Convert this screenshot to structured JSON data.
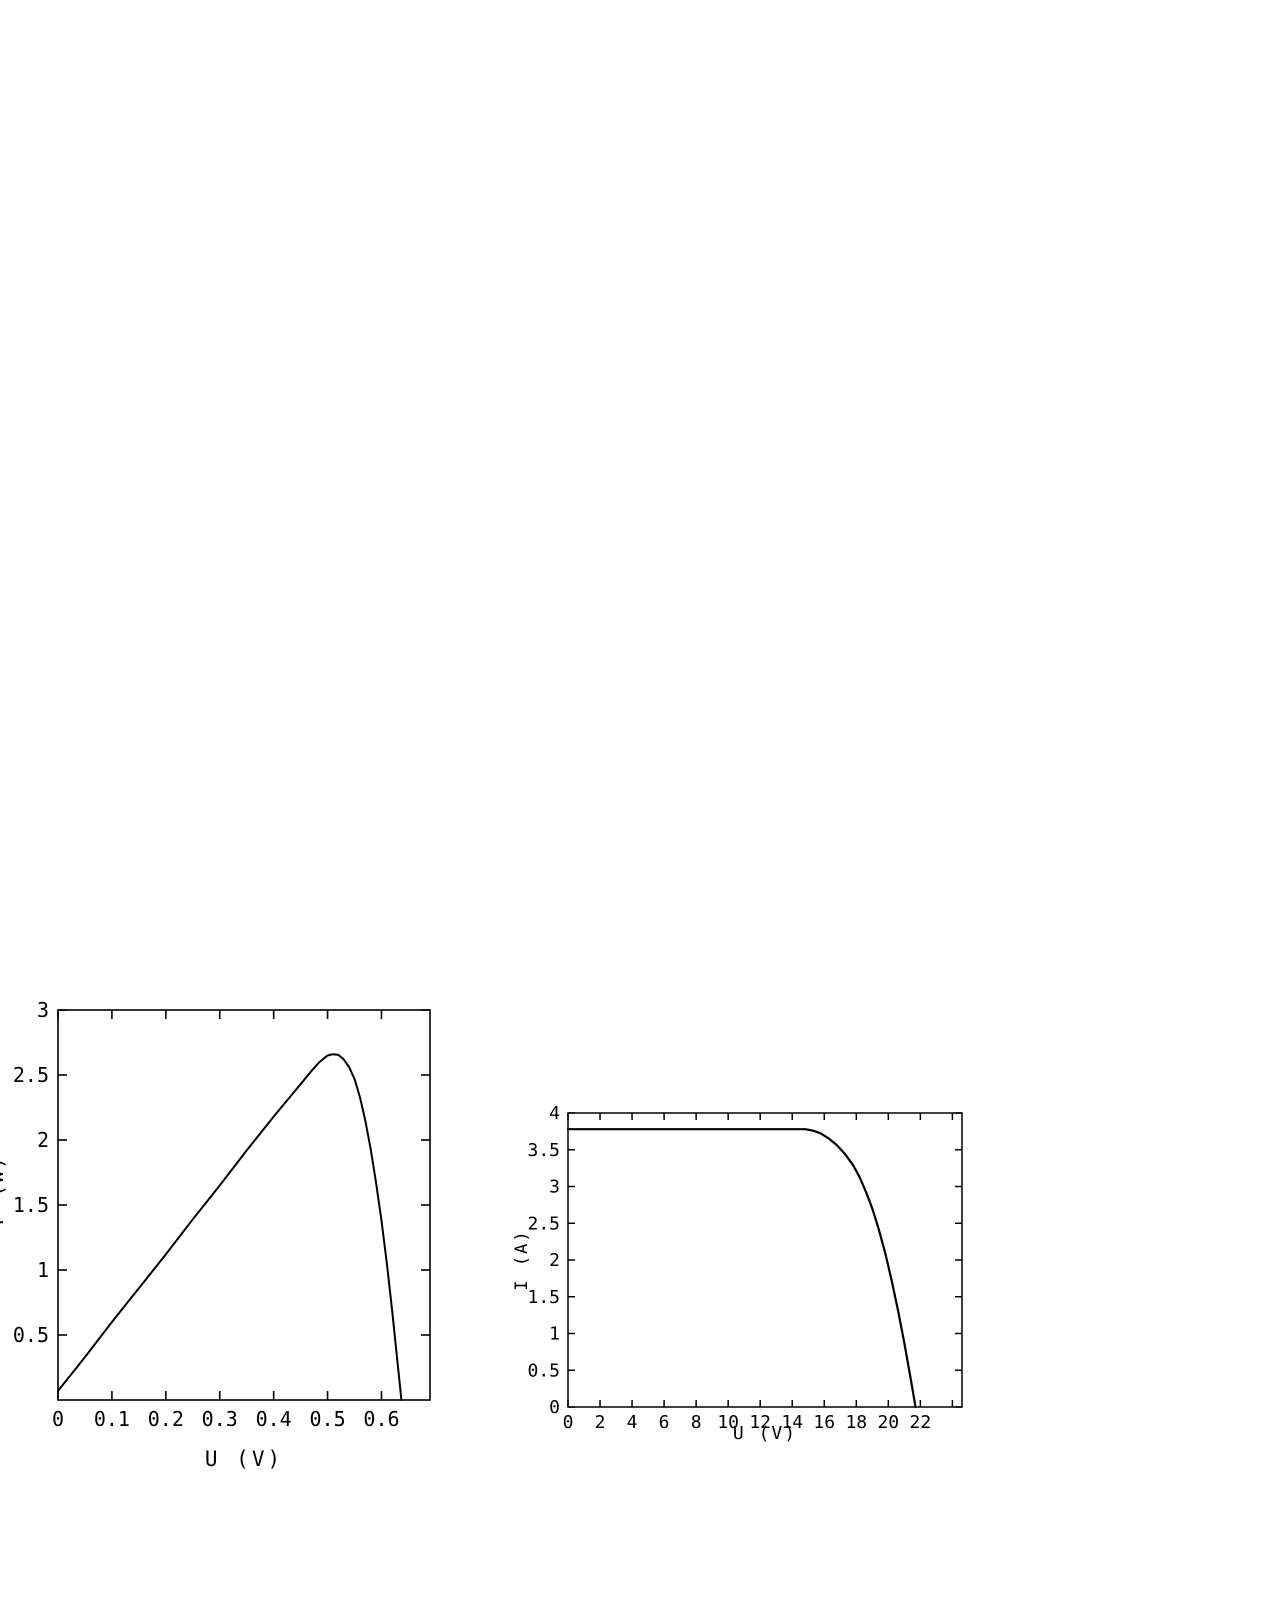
{
  "page": {
    "background": "#ffffff",
    "foreground": "#000000"
  },
  "chart_data": [
    {
      "type": "line",
      "title": "",
      "xlabel": "U (V)",
      "ylabel": "P (W)",
      "xlim": [
        0,
        0.69
      ],
      "ylim": [
        0,
        3
      ],
      "x_ticks": [
        0,
        0.1,
        0.2,
        0.3,
        0.4,
        0.5,
        0.6
      ],
      "x_tick_labels": [
        "0",
        "0.1",
        "0.2",
        "0.3",
        "0.4",
        "0.5",
        "0.6"
      ],
      "y_ticks": [
        0.5,
        1,
        1.5,
        2,
        2.5,
        3
      ],
      "y_tick_labels": [
        "0.5",
        "1",
        "1.5",
        "2",
        "2.5",
        "3"
      ],
      "grid": false,
      "line_color": "#000000",
      "series": [
        {
          "name": "power-vs-voltage-curve",
          "x": [
            0,
            0.05,
            0.1,
            0.15,
            0.2,
            0.25,
            0.3,
            0.35,
            0.4,
            0.43,
            0.45,
            0.47,
            0.485,
            0.5,
            0.51,
            0.52,
            0.53,
            0.54,
            0.55,
            0.56,
            0.57,
            0.58,
            0.59,
            0.6,
            0.61,
            0.62,
            0.63,
            0.637
          ],
          "y": [
            0.07,
            0.33,
            0.6,
            0.86,
            1.12,
            1.39,
            1.65,
            1.92,
            2.18,
            2.33,
            2.43,
            2.53,
            2.6,
            2.65,
            2.66,
            2.655,
            2.62,
            2.56,
            2.47,
            2.33,
            2.15,
            1.93,
            1.67,
            1.38,
            1.05,
            0.68,
            0.28,
            0
          ]
        }
      ]
    },
    {
      "type": "line",
      "title": "",
      "xlabel": "U (V)",
      "ylabel": "I (A)",
      "xlim": [
        0,
        24.6
      ],
      "ylim": [
        0,
        4
      ],
      "x_ticks": [
        0,
        2,
        4,
        6,
        8,
        10,
        12,
        14,
        16,
        18,
        20,
        22,
        24
      ],
      "x_tick_labels": [
        "0",
        "2",
        "4",
        "6",
        "8",
        "10",
        "12",
        "14",
        "16",
        "18",
        "20",
        "22",
        ""
      ],
      "y_ticks": [
        0,
        0.5,
        1,
        1.5,
        2,
        2.5,
        3,
        3.5,
        4
      ],
      "y_tick_labels": [
        "0",
        "0.5",
        "1",
        "1.5",
        "2",
        "2.5",
        "3",
        "3.5",
        "4"
      ],
      "grid": false,
      "line_color": "#000000",
      "series": [
        {
          "name": "current-vs-voltage-curve",
          "x": [
            0,
            14.8,
            15.3,
            15.8,
            16.3,
            16.8,
            17.3,
            17.8,
            18.2,
            18.6,
            19,
            19.4,
            19.8,
            20.2,
            20.6,
            21,
            21.4,
            21.7
          ],
          "y": [
            3.78,
            3.78,
            3.76,
            3.72,
            3.65,
            3.56,
            3.44,
            3.29,
            3.13,
            2.93,
            2.7,
            2.42,
            2.1,
            1.73,
            1.32,
            0.87,
            0.38,
            0
          ]
        }
      ]
    }
  ]
}
